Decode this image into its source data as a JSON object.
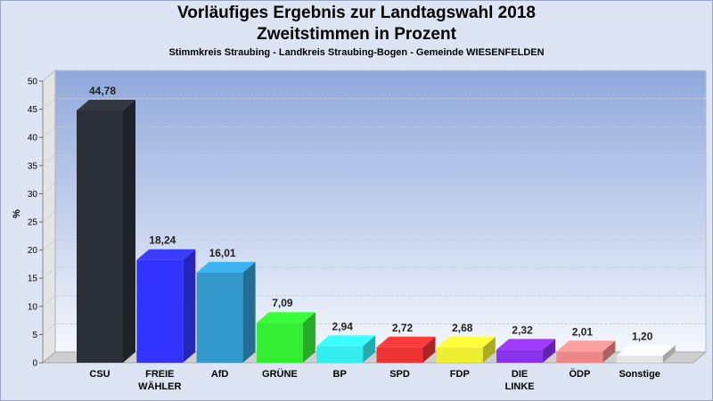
{
  "header": {
    "title_line1": "Vorläufiges Ergebnis zur Landtagswahl 2018",
    "title_line2": "Zweitstimmen in Prozent",
    "subtitle": "Stimmkreis Straubing - Landkreis Straubing-Bogen - Gemeinde WIESENFELDEN"
  },
  "chart_data": {
    "type": "bar",
    "title": "Vorläufiges Ergebnis zur Landtagswahl 2018 Zweitstimmen in Prozent",
    "subtitle": "Stimmkreis Straubing - Landkreis Straubing-Bogen - Gemeinde WIESENFELDEN",
    "xlabel": "",
    "ylabel": "%",
    "ylim": [
      0,
      50
    ],
    "yticks": [
      0,
      5,
      10,
      15,
      20,
      25,
      30,
      35,
      40,
      45,
      50
    ],
    "grid": true,
    "categories": [
      [
        "CSU"
      ],
      [
        "FREIE",
        "WÄHLER"
      ],
      [
        "AfD"
      ],
      [
        "GRÜNE"
      ],
      [
        "BP"
      ],
      [
        "SPD"
      ],
      [
        "FDP"
      ],
      [
        "DIE",
        "LINKE"
      ],
      [
        "ÖDP"
      ],
      [
        "Sonstige"
      ]
    ],
    "values": [
      44.78,
      18.24,
      16.01,
      7.09,
      2.94,
      2.72,
      2.68,
      2.32,
      2.01,
      1.2
    ],
    "value_labels": [
      "44,78",
      "18,24",
      "16,01",
      "7,09",
      "2,94",
      "2,72",
      "2,68",
      "2,32",
      "2,01",
      "1,20"
    ],
    "colors": [
      "#2b2f38",
      "#3333ff",
      "#3399cc",
      "#33ee33",
      "#33eeee",
      "#ee3333",
      "#eeee33",
      "#8833ee",
      "#ee8888",
      "#e6e6e6"
    ]
  }
}
